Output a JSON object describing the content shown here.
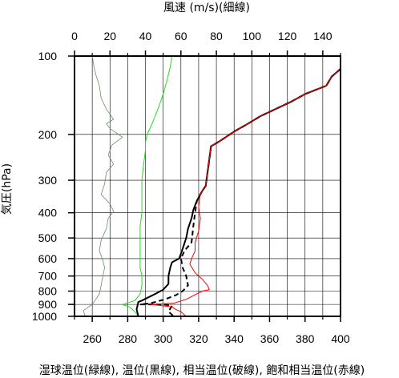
{
  "chart_data": {
    "type": "line",
    "title": "",
    "top_axis_label": "風速 (m/s)(細線)",
    "bottom_axis_label": "湿球温位(緑線), 温位(黒線), 相当温位(破線), 飽和相当温位(赤線)",
    "ylabel": "気圧(hPa)",
    "y_scale": "log",
    "y_inverted": true,
    "ylim": [
      1000,
      100
    ],
    "xlim_bottom": [
      250,
      400
    ],
    "xlim_top": [
      0,
      150
    ],
    "y_ticks": [
      100,
      200,
      300,
      400,
      500,
      600,
      700,
      800,
      900,
      1000
    ],
    "x_bottom_ticks": [
      260,
      280,
      300,
      320,
      340,
      360,
      380,
      400
    ],
    "x_top_ticks": [
      0,
      20,
      40,
      60,
      80,
      100,
      120,
      140
    ],
    "x_bottom_minor": [
      250,
      270,
      290,
      310,
      330,
      350,
      370,
      390
    ],
    "x_top_minor": [
      10,
      30,
      50,
      70,
      90,
      110,
      130,
      150
    ],
    "grid": true,
    "series": [
      {
        "key": "wind_speed",
        "axis": "top",
        "color": "#6b8f6b",
        "style": "thin",
        "points": [
          [
            10,
            100
          ],
          [
            11,
            110
          ],
          [
            12,
            118
          ],
          [
            14,
            130
          ],
          [
            15,
            145
          ],
          [
            18,
            160
          ],
          [
            22,
            175
          ],
          [
            18,
            182
          ],
          [
            20,
            190
          ],
          [
            27,
            205
          ],
          [
            21,
            220
          ],
          [
            19,
            240
          ],
          [
            22,
            260
          ],
          [
            18,
            280
          ],
          [
            17,
            310
          ],
          [
            15,
            340
          ],
          [
            20,
            370
          ],
          [
            22,
            395
          ],
          [
            19,
            420
          ],
          [
            18,
            460
          ],
          [
            15,
            510
          ],
          [
            14,
            560
          ],
          [
            16,
            610
          ],
          [
            17,
            650
          ],
          [
            16,
            700
          ],
          [
            15,
            760
          ],
          [
            14,
            820
          ],
          [
            12,
            860
          ],
          [
            10,
            900
          ],
          [
            5,
            950
          ],
          [
            6,
            1000
          ]
        ]
      },
      {
        "key": "wet_bulb_potential_temperature",
        "axis": "bottom",
        "color": "#22dd22",
        "style": "solid",
        "points": [
          [
            305,
            100
          ],
          [
            304,
            110
          ],
          [
            302,
            125
          ],
          [
            300,
            140
          ],
          [
            297,
            160
          ],
          [
            294,
            180
          ],
          [
            291,
            200
          ],
          [
            290,
            215
          ],
          [
            290,
            230
          ],
          [
            289,
            260
          ],
          [
            288,
            300
          ],
          [
            288,
            350
          ],
          [
            288,
            400
          ],
          [
            287,
            450
          ],
          [
            287,
            500
          ],
          [
            287,
            550
          ],
          [
            287,
            600
          ],
          [
            287,
            650
          ],
          [
            288,
            700
          ],
          [
            288,
            760
          ],
          [
            287,
            820
          ],
          [
            284,
            870
          ],
          [
            277,
            902
          ],
          [
            281,
            920
          ],
          [
            284,
            960
          ],
          [
            286,
            1000
          ]
        ]
      },
      {
        "key": "potential_temperature",
        "axis": "bottom",
        "color": "#000000",
        "style": "solid",
        "points": [
          [
            400,
            112
          ],
          [
            395,
            120
          ],
          [
            392,
            130
          ],
          [
            380,
            140
          ],
          [
            372,
            150
          ],
          [
            355,
            170
          ],
          [
            346,
            185
          ],
          [
            340,
            195
          ],
          [
            332,
            212
          ],
          [
            327,
            222
          ],
          [
            326,
            250
          ],
          [
            325,
            280
          ],
          [
            324,
            315
          ],
          [
            322,
            330
          ],
          [
            321,
            340
          ],
          [
            319,
            360
          ],
          [
            317,
            390
          ],
          [
            316,
            420
          ],
          [
            314,
            460
          ],
          [
            313,
            500
          ],
          [
            311,
            550
          ],
          [
            309,
            600
          ],
          [
            305,
            620
          ],
          [
            304,
            650
          ],
          [
            303,
            700
          ],
          [
            303,
            750
          ],
          [
            300,
            790
          ],
          [
            294,
            830
          ],
          [
            288,
            870
          ],
          [
            286,
            880
          ],
          [
            285,
            940
          ],
          [
            286,
            1000
          ]
        ]
      },
      {
        "key": "equivalent_potential_temperature",
        "axis": "bottom",
        "color": "#000000",
        "style": "dashed",
        "points": [
          [
            400,
            112
          ],
          [
            395,
            120
          ],
          [
            392,
            130
          ],
          [
            380,
            140
          ],
          [
            372,
            150
          ],
          [
            355,
            170
          ],
          [
            346,
            185
          ],
          [
            340,
            195
          ],
          [
            332,
            212
          ],
          [
            327,
            222
          ],
          [
            326,
            250
          ],
          [
            325,
            280
          ],
          [
            324,
            315
          ],
          [
            322,
            330
          ],
          [
            321,
            340
          ],
          [
            319,
            360
          ],
          [
            318,
            400
          ],
          [
            317,
            450
          ],
          [
            316,
            520
          ],
          [
            312,
            560
          ],
          [
            310,
            600
          ],
          [
            311,
            650
          ],
          [
            313,
            700
          ],
          [
            314,
            760
          ],
          [
            311,
            800
          ],
          [
            307,
            830
          ],
          [
            301,
            860
          ],
          [
            293,
            890
          ],
          [
            287,
            900
          ],
          [
            300,
            900
          ],
          [
            305,
            910
          ],
          [
            303,
            960
          ],
          [
            306,
            1000
          ]
        ]
      },
      {
        "key": "saturated_equivalent_potential_temperature",
        "axis": "bottom",
        "color": "#ff0000",
        "style": "solid",
        "points": [
          [
            400,
            112
          ],
          [
            395,
            120
          ],
          [
            392,
            130
          ],
          [
            380,
            140
          ],
          [
            372,
            150
          ],
          [
            355,
            170
          ],
          [
            346,
            185
          ],
          [
            340,
            195
          ],
          [
            332,
            212
          ],
          [
            327,
            222
          ],
          [
            326,
            250
          ],
          [
            325,
            280
          ],
          [
            324,
            315
          ],
          [
            322,
            330
          ],
          [
            321,
            340
          ],
          [
            320,
            380
          ],
          [
            321,
            420
          ],
          [
            320,
            470
          ],
          [
            318,
            520
          ],
          [
            318,
            560
          ],
          [
            316,
            600
          ],
          [
            315,
            630
          ],
          [
            318,
            680
          ],
          [
            322,
            720
          ],
          [
            325,
            760
          ],
          [
            326,
            790
          ],
          [
            322,
            800
          ],
          [
            313,
            860
          ],
          [
            306,
            890
          ],
          [
            293,
            900
          ],
          [
            305,
            920
          ],
          [
            307,
            940
          ],
          [
            310,
            960
          ],
          [
            313,
            1000
          ]
        ]
      }
    ]
  }
}
